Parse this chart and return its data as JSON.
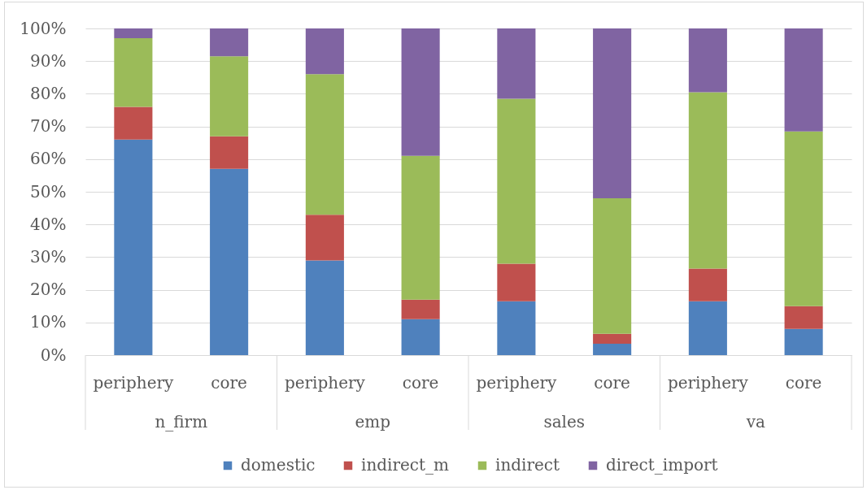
{
  "chart_data": {
    "type": "bar",
    "stacked": true,
    "categories": [
      "periphery",
      "core",
      "periphery",
      "core",
      "periphery",
      "core",
      "periphery",
      "core"
    ],
    "annotations": [
      "n_firm",
      "emp",
      "sales",
      "va"
    ],
    "series": [
      {
        "name": "domestic",
        "color": "#4f81bd",
        "values": [
          66,
          57,
          29,
          11,
          16.5,
          3.5,
          16.5,
          8
        ]
      },
      {
        "name": "indirect_m",
        "color": "#c0504d",
        "values": [
          10,
          10,
          14,
          6,
          11.5,
          3,
          10,
          7
        ]
      },
      {
        "name": "indirect",
        "color": "#9bbb59",
        "values": [
          21,
          24.5,
          43,
          44,
          50.5,
          41.5,
          54,
          53.5
        ]
      },
      {
        "name": "direct_import",
        "color": "#8064a2",
        "values": [
          3,
          8.5,
          14,
          39,
          21.5,
          52,
          19.5,
          31.5
        ]
      }
    ],
    "ylim": [
      0,
      100
    ],
    "yticks": [
      {
        "value": 0,
        "label": "0%"
      },
      {
        "value": 10,
        "label": "10%"
      },
      {
        "value": 20,
        "label": "20%"
      },
      {
        "value": 30,
        "label": "30%"
      },
      {
        "value": 40,
        "label": "40%"
      },
      {
        "value": 50,
        "label": "50%"
      },
      {
        "value": 60,
        "label": "60%"
      },
      {
        "value": 70,
        "label": "70%"
      },
      {
        "value": 80,
        "label": "80%"
      },
      {
        "value": 90,
        "label": "90%"
      },
      {
        "value": 100,
        "label": "100%"
      }
    ],
    "grid": "y",
    "legend": "bottom"
  }
}
